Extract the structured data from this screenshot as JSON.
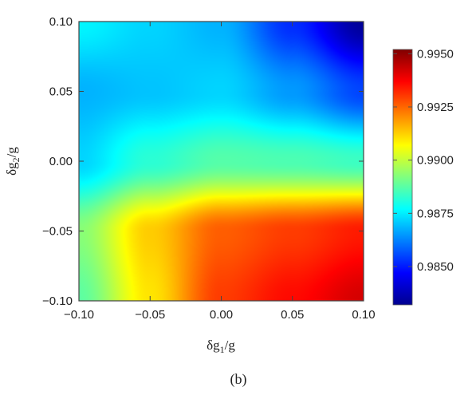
{
  "chart_data": {
    "type": "heatmap",
    "title": "",
    "xlabel": "δg1/g",
    "ylabel": "δg2/g",
    "xlim": [
      -0.1,
      0.1
    ],
    "ylim": [
      -0.1,
      0.1
    ],
    "x_ticks": [
      "−0.10",
      "−0.05",
      "0.00",
      "0.05",
      "0.10"
    ],
    "y_ticks": [
      "0.10",
      "0.05",
      "0.00",
      "−0.05",
      "−0.10"
    ],
    "x_tick_values": [
      -0.1,
      -0.05,
      0.0,
      0.05,
      0.1
    ],
    "y_tick_values": [
      0.1,
      0.05,
      0.0,
      -0.05,
      -0.1
    ],
    "colorbar": {
      "range": [
        0.9832,
        0.9952
      ],
      "ticks": [
        "0.9950",
        "0.9925",
        "0.9900",
        "0.9875",
        "0.9850"
      ],
      "tick_values": [
        0.995,
        0.9925,
        0.99,
        0.9875,
        0.985
      ],
      "colormap": "jet"
    },
    "z_samples": {
      "x": [
        -0.1,
        -0.05,
        0.0,
        0.05,
        0.1
      ],
      "y": [
        0.1,
        0.05,
        0.0,
        -0.05,
        -0.1
      ],
      "values": [
        [
          0.9876,
          0.9872,
          0.9868,
          0.9852,
          0.9835
        ],
        [
          0.9868,
          0.987,
          0.9872,
          0.9865,
          0.9855
        ],
        [
          0.9872,
          0.9882,
          0.9887,
          0.9886,
          0.9884
        ],
        [
          0.9893,
          0.9913,
          0.9926,
          0.993,
          0.9934
        ],
        [
          0.9888,
          0.991,
          0.993,
          0.9936,
          0.9942
        ]
      ]
    },
    "grid": false,
    "legend": "colorbar-right"
  },
  "caption": "(b)"
}
